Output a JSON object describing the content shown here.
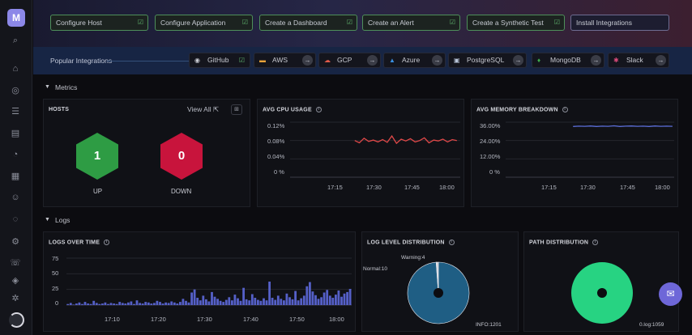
{
  "sidebar": {
    "logo": "M",
    "icons": [
      "search-icon",
      "home-icon",
      "infrastructure-icon",
      "list-icon",
      "document-icon",
      "alerts-icon",
      "dashboards-icon",
      "bot-icon",
      "synthetics-icon",
      "settings-icon",
      "support-icon",
      "integrations-icon",
      "gear-icon"
    ]
  },
  "quickstart": [
    {
      "label": "Configure Host",
      "done": true
    },
    {
      "label": "Configure Application",
      "done": true
    },
    {
      "label": "Create a Dashboard",
      "done": true
    },
    {
      "label": "Create an Alert",
      "done": true
    },
    {
      "label": "Create a Synthetic Test",
      "done": true
    },
    {
      "label": "Install Integrations",
      "done": false
    }
  ],
  "popular": {
    "title": "Popular Integrations",
    "items": [
      {
        "label": "GitHub",
        "icon": "github-icon",
        "installed": true
      },
      {
        "label": "AWS",
        "icon": "aws-icon",
        "installed": false
      },
      {
        "label": "GCP",
        "icon": "gcp-icon",
        "installed": false
      },
      {
        "label": "Azure",
        "icon": "azure-icon",
        "installed": false
      },
      {
        "label": "PostgreSQL",
        "icon": "postgresql-icon",
        "installed": false
      },
      {
        "label": "MongoDB",
        "icon": "mongodb-icon",
        "installed": false
      },
      {
        "label": "Slack",
        "icon": "slack-icon",
        "installed": false
      }
    ]
  },
  "metrics": {
    "title": "Metrics",
    "hosts": {
      "title": "HOSTS",
      "view_all": "View All",
      "up_count": "1",
      "up_label": "UP",
      "down_count": "0",
      "down_label": "DOWN",
      "up_color": "#2e9c44",
      "down_color": "#c8143c"
    },
    "cpu": {
      "title": "AVG CPU USAGE"
    },
    "memory": {
      "title": "AVG MEMORY BREAKDOWN"
    }
  },
  "logs": {
    "title": "Logs",
    "over_time": {
      "title": "LOGS OVER TIME"
    },
    "level": {
      "title": "LOG LEVEL DISTRIBUTION"
    },
    "path": {
      "title": "PATH DISTRIBUTION"
    }
  },
  "colors": {
    "cpu_line": "#e04848",
    "memory_line": "#5b6ed8",
    "bars": "#5560c8",
    "pie_level": "#1f5e84",
    "pie_path": "#27d382"
  },
  "chart_data": [
    {
      "type": "line",
      "title": "AVG CPU USAGE",
      "y_ticks": [
        "0.12%",
        "0.08%",
        "0.04%",
        "0 %"
      ],
      "x_ticks": [
        "17:15",
        "17:30",
        "17:45",
        "18:00"
      ],
      "ylim": [
        0,
        0.12
      ],
      "series": [
        {
          "values": [
            0.08,
            0.075,
            0.085,
            0.078,
            0.081,
            0.077,
            0.082,
            0.076,
            0.09,
            0.074,
            0.083,
            0.079,
            0.084,
            0.077,
            0.08,
            0.086,
            0.075,
            0.081,
            0.079,
            0.083,
            0.077,
            0.082,
            0.08
          ]
        }
      ]
    },
    {
      "type": "line",
      "title": "AVG MEMORY BREAKDOWN",
      "y_ticks": [
        "36.00%",
        "24.00%",
        "12.00%",
        "0 %"
      ],
      "x_ticks": [
        "17:15",
        "17:30",
        "17:45",
        "18:00"
      ],
      "ylim": [
        0,
        36
      ],
      "series": [
        {
          "values": [
            33.2,
            33.4,
            33.3,
            33.5,
            33.2,
            33.4,
            33.3,
            33.6,
            33.2,
            33.4,
            33.5,
            33.3,
            33.4,
            33.2,
            33.5,
            33.3,
            33.4,
            33.3
          ]
        }
      ]
    },
    {
      "type": "bar",
      "title": "LOGS OVER TIME",
      "y_ticks": [
        "75",
        "50",
        "25",
        "0"
      ],
      "x_ticks": [
        "17:10",
        "17:20",
        "17:30",
        "17:40",
        "17:50",
        "18:00"
      ],
      "ylim": [
        0,
        90
      ],
      "values": [
        2,
        4,
        1,
        3,
        5,
        2,
        6,
        3,
        2,
        8,
        4,
        2,
        3,
        5,
        2,
        4,
        3,
        2,
        6,
        4,
        3,
        5,
        7,
        2,
        9,
        4,
        3,
        6,
        5,
        3,
        4,
        8,
        6,
        3,
        5,
        4,
        7,
        5,
        3,
        6,
        12,
        8,
        5,
        24,
        30,
        14,
        9,
        18,
        11,
        7,
        25,
        16,
        12,
        8,
        6,
        10,
        15,
        9,
        20,
        13,
        8,
        33,
        11,
        9,
        21,
        14,
        10,
        8,
        13,
        9,
        45,
        14,
        10,
        18,
        12,
        9,
        22,
        15,
        11,
        27,
        9,
        13,
        18,
        36,
        44,
        26,
        19,
        12,
        15,
        24,
        29,
        18,
        14,
        20,
        28,
        16,
        22,
        25,
        31
      ]
    },
    {
      "type": "pie",
      "title": "LOG LEVEL DISTRIBUTION",
      "labels": [
        "INFO:1201",
        "Warning:4",
        "Normal:10"
      ],
      "values": [
        1201,
        4,
        10
      ]
    },
    {
      "type": "pie",
      "title": "PATH DISTRIBUTION",
      "labels": [
        "0.log:1059"
      ],
      "values": [
        1059
      ]
    }
  ]
}
